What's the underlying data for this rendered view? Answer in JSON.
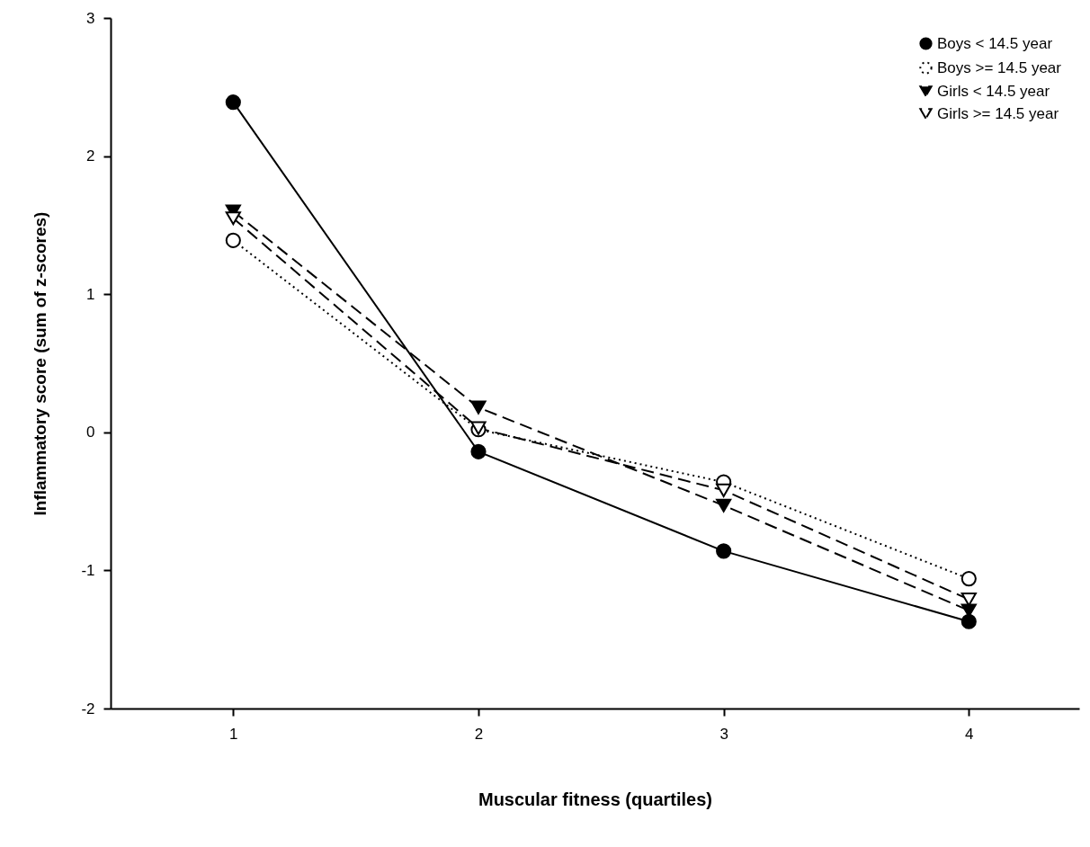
{
  "chart_data": {
    "type": "line",
    "xlabel": "Muscular fitness (quartiles)",
    "ylabel": "Inflammatory score (sum of z-scores)",
    "x": [
      1,
      2,
      3,
      4
    ],
    "xlim": [
      0.5,
      4.45
    ],
    "xticks": [
      1,
      2,
      3,
      4
    ],
    "ylim": [
      -2,
      3
    ],
    "yticks": [
      -2,
      -1,
      0,
      1,
      2,
      3
    ],
    "grid": false,
    "legend": "top right",
    "series": [
      {
        "name": "Boys < 14.5 year",
        "color": "#000000",
        "values": [
          2.39,
          -0.14,
          -0.86,
          -1.37
        ],
        "marker": "circle",
        "line_style": "solid"
      },
      {
        "name": "Boys >= 14.5 year",
        "color": "#000000",
        "values": [
          1.39,
          0.02,
          -0.36,
          -1.06
        ],
        "marker": "circle-open",
        "line_style": "dotted"
      },
      {
        "name": "Girls < 14.5 year",
        "color": "#000000",
        "values": [
          1.6,
          0.18,
          -0.53,
          -1.29
        ],
        "marker": "triangle",
        "line_style": "dashed"
      },
      {
        "name": "Girls >= 14.5 year",
        "color": "#000000",
        "values": [
          1.55,
          0.03,
          -0.42,
          -1.21
        ],
        "marker": "triangle-open",
        "line_style": "dashed"
      }
    ]
  }
}
